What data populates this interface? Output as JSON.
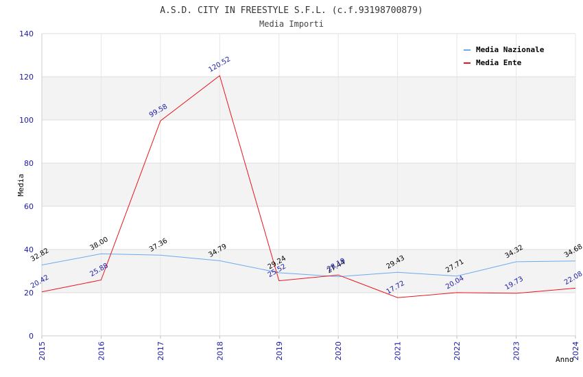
{
  "chart_data": {
    "type": "line",
    "title": "A.S.D. CITY IN FREESTYLE S.F.L. (c.f.93198700879)",
    "subtitle": "Media Importi",
    "xlabel": "Anno",
    "ylabel": "Media",
    "ylim": [
      0,
      140
    ],
    "yticks": [
      "0",
      "20",
      "40",
      "60",
      "80",
      "100",
      "120",
      "140"
    ],
    "categories": [
      "2015",
      "2016",
      "2017",
      "2018",
      "2019",
      "2020",
      "2021",
      "2022",
      "2023",
      "2024"
    ],
    "grid": true,
    "legend_position": "top-right",
    "series": [
      {
        "name": "Media Nazionale",
        "color": "#6aaaf0",
        "values": [
          32.82,
          38.0,
          37.36,
          34.79,
          29.24,
          27.44,
          29.43,
          27.71,
          34.32,
          34.68
        ],
        "labels": [
          "32.82",
          "38.00",
          "37.36",
          "34.79",
          "29.24",
          "27.44",
          "29.43",
          "27.71",
          "34.32",
          "34.68"
        ]
      },
      {
        "name": "Media Ente",
        "color": "#e8141b",
        "values": [
          20.42,
          25.88,
          99.58,
          120.52,
          25.52,
          28.19,
          17.72,
          20.04,
          19.73,
          22.08
        ],
        "labels": [
          "20.42",
          "25.88",
          "99.58",
          "120.52",
          "25.52",
          "28.19",
          "17.72",
          "20.04",
          "19.73",
          "22.08"
        ]
      }
    ]
  }
}
